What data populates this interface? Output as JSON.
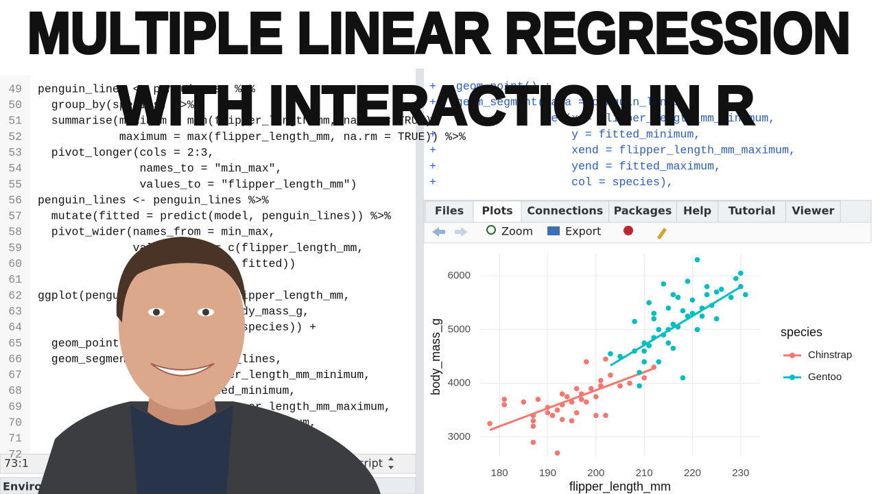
{
  "title": {
    "line1": "MULTIPLE LINEAR REGRESSION",
    "line2": "WITH INTERACTION IN R"
  },
  "editor": {
    "lines": [
      {
        "number": 49,
        "code": "penguin_lines <- penguins_sm %>%"
      },
      {
        "number": 50,
        "code": "  group_by(species) %>%"
      },
      {
        "number": 51,
        "code": "  summarise(minimum = min(flipper_length_mm, na.rm = TRUE),"
      },
      {
        "number": 52,
        "code": "            maximum = max(flipper_length_mm, na.rm = TRUE)) %>%"
      },
      {
        "number": 53,
        "code": "  pivot_longer(cols = 2:3,"
      },
      {
        "number": 54,
        "code": "               names_to = \"min_max\","
      },
      {
        "number": 55,
        "code": "               values_to = \"flipper_length_mm\")"
      },
      {
        "number": 56,
        "code": "penguin_lines <- penguin_lines %>%"
      },
      {
        "number": 57,
        "code": "  mutate(fitted = predict(model, penguin_lines)) %>%"
      },
      {
        "number": 58,
        "code": "  pivot_wider(names_from = min_max,"
      },
      {
        "number": 59,
        "code": "              values_from = c(flipper_length_mm,"
      },
      {
        "number": 60,
        "code": "                              fitted))"
      },
      {
        "number": 61
      },
      {
        "number": 62,
        "code": "ggplot(penguins_sm, aes(x = flipper_length_mm,"
      },
      {
        "number": 63,
        "code": "                        y = body_mass_g,"
      },
      {
        "number": 64,
        "code": "                        col = species)) +"
      },
      {
        "number": 65,
        "code": "  geom_point() +"
      },
      {
        "number": 66,
        "code": "  geom_segment(data = penguin_lines,"
      },
      {
        "number": 67,
        "code": "               aes(x = flipper_length_mm_minimum,"
      },
      {
        "number": 68,
        "code": "                   y = fitted_minimum,"
      },
      {
        "number": 69,
        "code": "                   xend = flipper_length_mm_maximum,"
      },
      {
        "number": 70,
        "code": "                   yend = fitted_maximum,"
      },
      {
        "number": 71
      },
      {
        "number": 72
      }
    ],
    "status": {
      "position": "73:1",
      "file_type": "R Script"
    }
  },
  "environment_tab": "Environment",
  "console": {
    "lines": [
      {
        "prompt": "+",
        "code": "  geom_point() +"
      },
      {
        "prompt": "+",
        "code": "  geom_segment(data = penguin_lines,"
      },
      {
        "prompt": "+",
        "code": "               aes(x = flipper_length_mm_minimum,"
      },
      {
        "prompt": "+",
        "code": "                   y = fitted_minimum,"
      },
      {
        "prompt": "+",
        "code": "                   xend = flipper_length_mm_maximum,"
      },
      {
        "prompt": "+",
        "code": "                   yend = fitted_maximum,"
      },
      {
        "prompt": "+",
        "code": "                   col = species),"
      }
    ]
  },
  "plots_pane": {
    "tabs": [
      "Files",
      "Plots",
      "Connections",
      "Packages",
      "Help",
      "Tutorial",
      "Viewer"
    ],
    "active_tab": "Plots",
    "toolbar": [
      "Zoom",
      "Export"
    ]
  },
  "chart_data": {
    "type": "scatter",
    "x_label": "flipper_length_mm",
    "y_label": "body_mass_g",
    "legend_title": "species",
    "xlim": [
      176,
      234
    ],
    "ylim": [
      2640,
      6410
    ],
    "xticks": [
      180,
      190,
      200,
      210,
      220,
      230
    ],
    "yticks": [
      3000,
      4000,
      5000,
      6000
    ],
    "grid": true,
    "series": [
      {
        "name": "Chinstrap",
        "color": "#F8766D",
        "x": [
          178,
          181,
          181,
          185,
          187,
          187,
          187,
          188,
          190,
          190,
          191,
          192,
          192,
          193,
          193,
          194,
          195,
          195,
          196,
          196,
          197,
          197,
          198,
          198,
          199,
          200,
          200,
          201,
          201,
          202,
          202,
          203,
          205,
          207,
          210,
          212,
          193,
          187
        ],
        "values": [
          3250,
          3700,
          3600,
          3650,
          3200,
          2900,
          3300,
          3700,
          3450,
          3550,
          3400,
          3500,
          2700,
          3800,
          3600,
          3750,
          3650,
          3300,
          3900,
          3450,
          3800,
          3700,
          4400,
          3650,
          3900,
          3400,
          3750,
          4050,
          3950,
          3400,
          4450,
          4150,
          3950,
          4000,
          4100,
          4300,
          3325,
          3400
        ],
        "fit_x": [
          178,
          212
        ],
        "fit_values": [
          3130,
          4275
        ]
      },
      {
        "name": "Gentoo",
        "color": "#00BFC4",
        "x": [
          203,
          205,
          208,
          209,
          209,
          210,
          210,
          210,
          211,
          211,
          212,
          212,
          213,
          213,
          214,
          214,
          215,
          215,
          215,
          216,
          216,
          216,
          217,
          217,
          218,
          218,
          219,
          219,
          220,
          220,
          221,
          221,
          222,
          222,
          223,
          223,
          224,
          225,
          225,
          226,
          228,
          229,
          230,
          230,
          231,
          212,
          208
        ],
        "values": [
          4550,
          4500,
          4600,
          4200,
          3950,
          4750,
          4400,
          4600,
          5500,
          4700,
          4850,
          5200,
          5000,
          4400,
          4900,
          5850,
          5000,
          5400,
          4750,
          5100,
          5650,
          4650,
          5050,
          5600,
          5350,
          4100,
          5250,
          5900,
          5300,
          5550,
          6300,
          5000,
          5400,
          5250,
          5650,
          5800,
          5450,
          5700,
          5200,
          5750,
          5600,
          5950,
          6050,
          5800,
          5650,
          5300,
          5150
        ],
        "fit_x": [
          203,
          230
        ],
        "fit_values": [
          4330,
          5795
        ]
      }
    ]
  }
}
